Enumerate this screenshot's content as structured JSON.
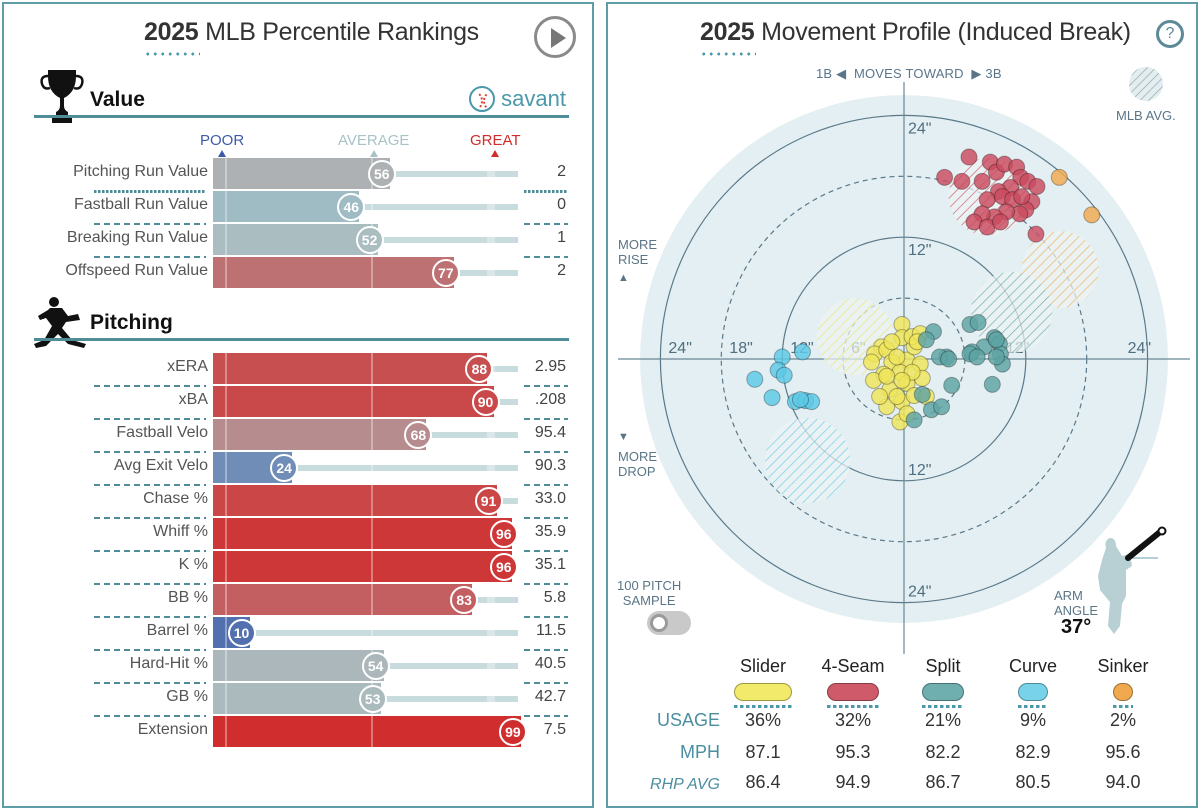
{
  "percentile": {
    "title_year": "2025",
    "title_rest": "MLB Percentile Rankings",
    "play_icon": "play-icon",
    "brand": "savant",
    "value_section": "Value",
    "pitching_section": "Pitching",
    "scale": {
      "poor": "POOR",
      "average": "AVERAGE",
      "great": "GREAT"
    },
    "colors": {
      "poor": "#3d5ba9",
      "average": "#a8c3c6",
      "great": "#d12b2b",
      "accent": "#4a98aa"
    },
    "value_rows": [
      {
        "label": "Pitching Run Value",
        "pct": 56,
        "value": "2"
      },
      {
        "label": "Fastball Run Value",
        "pct": 46,
        "value": "0"
      },
      {
        "label": "Breaking Run Value",
        "pct": 52,
        "value": "1"
      },
      {
        "label": "Offspeed Run Value",
        "pct": 77,
        "value": "2"
      }
    ],
    "pitching_rows": [
      {
        "label": "xERA",
        "pct": 88,
        "value": "2.95"
      },
      {
        "label": "xBA",
        "pct": 90,
        "value": ".208"
      },
      {
        "label": "Fastball Velo",
        "pct": 68,
        "value": "95.4"
      },
      {
        "label": "Avg Exit Velo",
        "pct": 24,
        "value": "90.3"
      },
      {
        "label": "Chase %",
        "pct": 91,
        "value": "33.0"
      },
      {
        "label": "Whiff %",
        "pct": 96,
        "value": "35.9"
      },
      {
        "label": "K %",
        "pct": 96,
        "value": "35.1"
      },
      {
        "label": "BB %",
        "pct": 83,
        "value": "5.8"
      },
      {
        "label": "Barrel %",
        "pct": 10,
        "value": "11.5"
      },
      {
        "label": "Hard-Hit %",
        "pct": 54,
        "value": "40.5"
      },
      {
        "label": "GB %",
        "pct": 53,
        "value": "42.7"
      },
      {
        "label": "Extension",
        "pct": 99,
        "value": "7.5"
      }
    ]
  },
  "movement": {
    "title_year": "2025",
    "title_rest": "Movement Profile (Induced Break)",
    "help_label": "?",
    "moves_toward": {
      "left": "1B",
      "mid": "MOVES TOWARD",
      "right": "3B"
    },
    "mlb_avg_label": "MLB AVG.",
    "more_rise": [
      "MORE",
      "RISE"
    ],
    "more_drop": [
      "MORE",
      "DROP"
    ],
    "sample_label": [
      "100 PITCH",
      "SAMPLE"
    ],
    "sample_toggle_on": false,
    "arm_angle_label": [
      "ARM",
      "ANGLE"
    ],
    "arm_angle_value": "37°",
    "table_headers": {
      "usage": "USAGE",
      "mph": "MPH",
      "rhp_avg": "RHP AVG"
    },
    "pitches": [
      {
        "name": "Slider",
        "color": "#f1ea6a",
        "usage": "36%",
        "mph": "87.1",
        "rhp_avg": "86.4"
      },
      {
        "name": "4-Seam",
        "color": "#cf5a6a",
        "usage": "32%",
        "mph": "95.3",
        "rhp_avg": "94.9"
      },
      {
        "name": "Split",
        "color": "#6fafaf",
        "usage": "21%",
        "mph": "82.2",
        "rhp_avg": "86.7"
      },
      {
        "name": "Curve",
        "color": "#78d3ea",
        "usage": "9%",
        "mph": "82.9",
        "rhp_avg": "80.5"
      },
      {
        "name": "Sinker",
        "color": "#f0a94e",
        "usage": "2%",
        "mph": "95.6",
        "rhp_avg": "94.0"
      }
    ]
  },
  "chart_data": {
    "type": "scatter",
    "title": "2025 Movement Profile (Induced Break)",
    "xlabel": "Horizontal break (in), 1B ◀ moves toward ▶ 3B",
    "ylabel": "Induced vertical break (in), more rise ▲ / ▼ more drop",
    "xlim": [
      -26,
      26
    ],
    "ylim": [
      -26,
      26
    ],
    "rings_in": [
      6,
      12,
      18,
      24
    ],
    "ring_labels": {
      "left": [
        "24\"",
        "18\"",
        "12\"",
        "6\""
      ],
      "right": [
        "12\"",
        "24\""
      ],
      "top": [
        "24\"",
        "12\""
      ],
      "bottom": [
        "12\"",
        "24\""
      ]
    },
    "series": [
      {
        "name": "4-Seam",
        "color": "#cb4b5e",
        "avg": {
          "x": 8.2,
          "y": 16.0,
          "r": 3.8
        },
        "points": [
          [
            4.0,
            17.9
          ],
          [
            6.4,
            19.9
          ],
          [
            8.5,
            19.4
          ],
          [
            9.1,
            18.4
          ],
          [
            9.9,
            19.2
          ],
          [
            11.1,
            18.9
          ],
          [
            11.5,
            17.9
          ],
          [
            10.5,
            16.9
          ],
          [
            9.3,
            16.5
          ],
          [
            7.7,
            17.5
          ],
          [
            8.2,
            15.7
          ],
          [
            9.7,
            16.0
          ],
          [
            10.7,
            15.7
          ],
          [
            12.2,
            17.5
          ],
          [
            12.6,
            15.5
          ],
          [
            12.0,
            14.7
          ],
          [
            11.4,
            14.3
          ],
          [
            10.1,
            14.5
          ],
          [
            8.9,
            14.0
          ],
          [
            7.7,
            14.3
          ],
          [
            6.9,
            13.5
          ],
          [
            8.2,
            13.0
          ],
          [
            9.5,
            13.5
          ],
          [
            13.1,
            17.0
          ],
          [
            11.6,
            16.0
          ],
          [
            5.7,
            17.5
          ],
          [
            13.0,
            12.3
          ]
        ]
      },
      {
        "name": "Sinker",
        "color": "#f0a94e",
        "avg": {
          "x": 15.4,
          "y": 8.8,
          "r": 3.8
        },
        "points": [
          [
            15.3,
            17.9
          ],
          [
            18.5,
            14.2
          ]
        ]
      },
      {
        "name": "Slider",
        "color": "#efe55a",
        "avg": {
          "x": -4.8,
          "y": 2.2,
          "r": 3.8
        },
        "points": [
          [
            -0.2,
            3.4
          ],
          [
            -0.2,
            2.1
          ],
          [
            -2.2,
            1.2
          ],
          [
            -2.9,
            0.5
          ],
          [
            -1.7,
            0.9
          ],
          [
            -1.2,
            -0.3
          ],
          [
            0.3,
            -0.1
          ],
          [
            -2.0,
            -1.5
          ],
          [
            -0.4,
            -1.3
          ],
          [
            1.0,
            1.2
          ],
          [
            1.6,
            -0.5
          ],
          [
            1.8,
            -1.9
          ],
          [
            -3.0,
            -2.1
          ],
          [
            -1.4,
            -3.0
          ],
          [
            0.3,
            -2.4
          ],
          [
            -1.7,
            -4.7
          ],
          [
            -0.2,
            -4.2
          ],
          [
            1.0,
            -3.6
          ],
          [
            -0.4,
            -6.2
          ],
          [
            -3.2,
            -0.3
          ],
          [
            -1.2,
            1.7
          ],
          [
            0.8,
            2.2
          ],
          [
            1.6,
            2.5
          ],
          [
            2.2,
            -3.7
          ],
          [
            -2.4,
            -3.7
          ],
          [
            -0.7,
            -3.7
          ],
          [
            0.3,
            -5.4
          ],
          [
            -0.7,
            0.2
          ],
          [
            0.8,
            -1.3
          ],
          [
            -1.7,
            -1.7
          ],
          [
            1.3,
            1.7
          ],
          [
            -0.2,
            -2.1
          ]
        ]
      },
      {
        "name": "Split",
        "color": "#5ea3a3",
        "avg": {
          "x": 10.6,
          "y": 4.6,
          "r": 4.0
        },
        "points": [
          [
            2.9,
            2.7
          ],
          [
            2.2,
            1.9
          ],
          [
            6.5,
            3.4
          ],
          [
            7.3,
            3.6
          ],
          [
            8.9,
            2.1
          ],
          [
            9.4,
            1.5
          ],
          [
            9.5,
            0.5
          ],
          [
            9.7,
            -0.5
          ],
          [
            9.1,
            0.2
          ],
          [
            7.9,
            1.2
          ],
          [
            6.7,
            0.7
          ],
          [
            4.2,
            0.2
          ],
          [
            3.5,
            0.2
          ],
          [
            8.7,
            -2.5
          ],
          [
            4.7,
            -2.6
          ],
          [
            1.8,
            -3.5
          ],
          [
            2.7,
            -5.0
          ],
          [
            3.7,
            -4.7
          ],
          [
            1.0,
            -6.0
          ],
          [
            4.4,
            0.0
          ],
          [
            9.1,
            1.9
          ],
          [
            6.5,
            0.5
          ],
          [
            7.2,
            0.2
          ]
        ]
      },
      {
        "name": "Curve",
        "color": "#5cc8e6",
        "avg": {
          "x": -9.5,
          "y": -10.0,
          "r": 4.2
        },
        "points": [
          [
            -12.0,
            0.2
          ],
          [
            -10.0,
            0.7
          ],
          [
            -12.4,
            -1.1
          ],
          [
            -11.8,
            -1.6
          ],
          [
            -14.7,
            -2.0
          ],
          [
            -13.0,
            -3.8
          ],
          [
            -10.7,
            -4.2
          ],
          [
            -9.7,
            -4.1
          ],
          [
            -9.1,
            -4.2
          ],
          [
            -10.2,
            -4.0
          ]
        ]
      }
    ],
    "legend": "bottom"
  }
}
